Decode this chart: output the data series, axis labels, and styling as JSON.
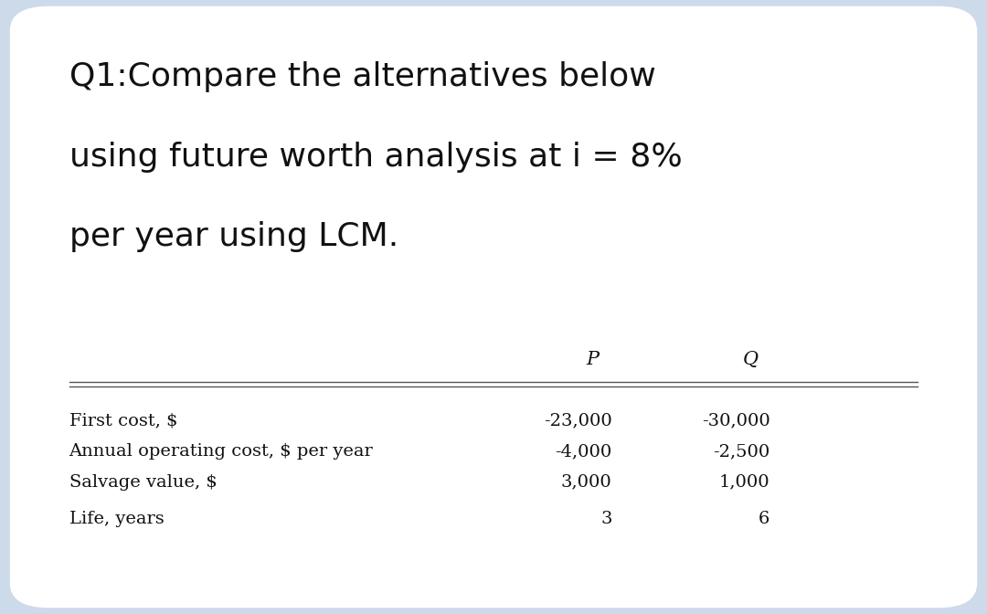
{
  "title_lines": [
    "Q1:Compare the alternatives below",
    "using future worth analysis at i = 8%",
    "per year using LCM."
  ],
  "col_headers": [
    "P",
    "Q"
  ],
  "row_labels": [
    "First cost, $",
    "Annual operating cost, $ per year",
    "Salvage value, $",
    "Life, years"
  ],
  "col_P": [
    "-23,000",
    "-4,000",
    "3,000",
    "3"
  ],
  "col_Q": [
    "-30,000",
    "-2,500",
    "1,000",
    "6"
  ],
  "background_color": "#cddaea",
  "card_color": "#ffffff",
  "text_color": "#111111",
  "title_fontsize": 26,
  "table_label_fontsize": 14,
  "table_value_fontsize": 14,
  "header_fontsize": 15
}
